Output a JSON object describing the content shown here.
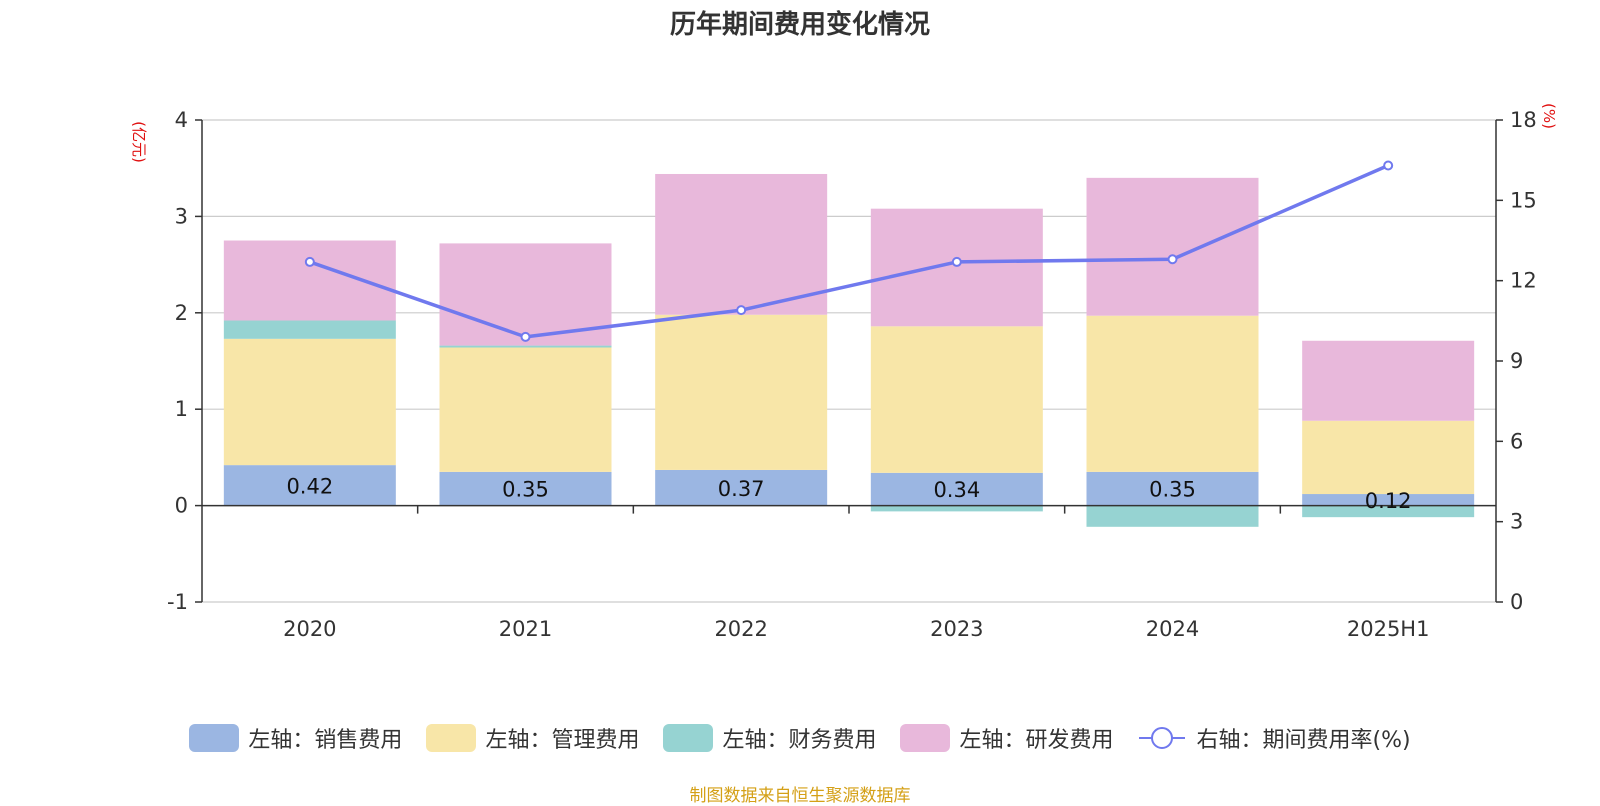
{
  "title": "历年期间费用变化情况",
  "source": "制图数据来自恒生聚源数据库",
  "chart_data": {
    "type": "bar",
    "stacked": true,
    "title": "历年期间费用变化情况",
    "categories": [
      "2020",
      "2021",
      "2022",
      "2023",
      "2024",
      "2025H1"
    ],
    "left_axis": {
      "unit": "(亿元)",
      "ylim": [
        -1,
        4
      ],
      "ticks": [
        -1,
        0,
        1,
        2,
        3,
        4
      ]
    },
    "right_axis": {
      "unit": "(%)",
      "ylim": [
        0,
        18
      ],
      "ticks": [
        0,
        3,
        6,
        9,
        12,
        15,
        18
      ]
    },
    "grid": true,
    "legend_position": "bottom",
    "series": [
      {
        "name": "左轴：销售费用",
        "axis": "left",
        "type": "bar",
        "color": "#9bb6e2",
        "values": [
          0.42,
          0.35,
          0.37,
          0.34,
          0.35,
          0.12
        ],
        "data_labels": [
          "0.42",
          "0.35",
          "0.37",
          "0.34",
          "0.35",
          "0.12"
        ]
      },
      {
        "name": "左轴：管理费用",
        "axis": "left",
        "type": "bar",
        "color": "#f8e6a8",
        "values": [
          1.31,
          1.29,
          1.61,
          1.52,
          1.62,
          0.76
        ]
      },
      {
        "name": "左轴：财务费用",
        "axis": "left",
        "type": "bar",
        "color": "#96d3d2",
        "values": [
          0.19,
          0.02,
          0.0,
          -0.06,
          -0.22,
          -0.12
        ]
      },
      {
        "name": "左轴：研发费用",
        "axis": "left",
        "type": "bar",
        "color": "#e8b8db",
        "values": [
          0.83,
          1.06,
          1.46,
          1.22,
          1.43,
          0.83
        ]
      },
      {
        "name": "右轴：期间费用率(%)",
        "axis": "right",
        "type": "line",
        "color": "#7079ee",
        "values": [
          12.7,
          9.9,
          10.9,
          12.7,
          12.8,
          16.3
        ]
      }
    ]
  }
}
